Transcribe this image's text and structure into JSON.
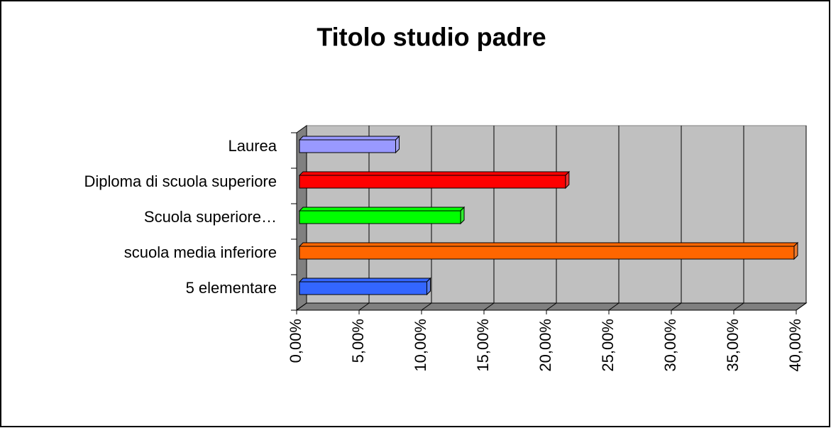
{
  "chart_data": {
    "type": "bar3d_horizontal",
    "title": "Titolo studio padre",
    "categories": [
      "5 elementare",
      "scuola media inferiore",
      "Scuola superiore…",
      "Diploma di scuola superiore",
      "Laurea"
    ],
    "values": [
      10.2,
      39.6,
      12.9,
      21.3,
      7.7
    ],
    "colors": [
      "#3366ff",
      "#ff6600",
      "#00ff00",
      "#ff0000",
      "#9999ff"
    ],
    "xlim": [
      0,
      40
    ],
    "xticks": [
      {
        "value": 0,
        "label": "0,00%"
      },
      {
        "value": 5,
        "label": "5,00%"
      },
      {
        "value": 10,
        "label": "10,00%"
      },
      {
        "value": 15,
        "label": "15,00%"
      },
      {
        "value": 20,
        "label": "20,00%"
      },
      {
        "value": 25,
        "label": "25,00%"
      },
      {
        "value": 30,
        "label": "30,00%"
      },
      {
        "value": 35,
        "label": "35,00%"
      },
      {
        "value": 40,
        "label": "40,00%"
      }
    ],
    "grid": true
  }
}
